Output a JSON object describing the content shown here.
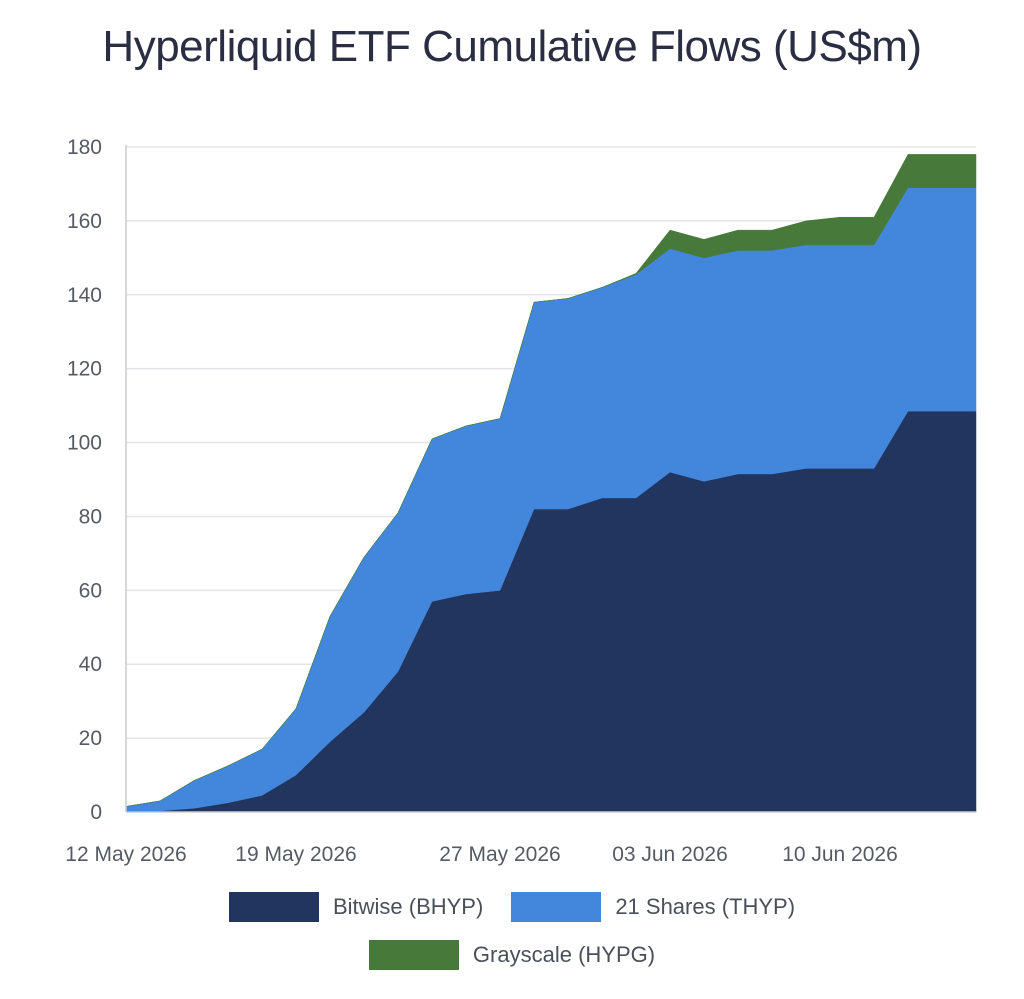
{
  "chart_data": {
    "type": "area",
    "stacked": true,
    "title": "Hyperliquid ETF Cumulative Flows (US$m)",
    "ylim": [
      0,
      180
    ],
    "yticks": [
      0,
      20,
      40,
      60,
      80,
      100,
      120,
      140,
      160,
      180
    ],
    "grid": true,
    "legend_position": "bottom",
    "x": [
      "12 May 2026",
      "13 May 2026",
      "14 May 2026",
      "15 May 2026",
      "18 May 2026",
      "19 May 2026",
      "20 May 2026",
      "21 May 2026",
      "22 May 2026",
      "25 May 2026",
      "26 May 2026",
      "27 May 2026",
      "28 May 2026",
      "29 May 2026",
      "01 Jun 2026",
      "02 Jun 2026",
      "03 Jun 2026",
      "04 Jun 2026",
      "05 Jun 2026",
      "08 Jun 2026",
      "09 Jun 2026",
      "10 Jun 2026",
      "11 Jun 2026",
      "12 Jun 2026",
      "15 Jun 2026",
      "16 Jun 2026"
    ],
    "xtick_labels": [
      "12 May 2026",
      "19 May 2026",
      "27 May 2026",
      "03 Jun 2026",
      "10 Jun 2026"
    ],
    "series": [
      {
        "name": "Bitwise (BHYP)",
        "color": "#22355e",
        "values": [
          0.3,
          0.3,
          1,
          2.5,
          4.5,
          10,
          19,
          27,
          38,
          57,
          59,
          60,
          82,
          82,
          85,
          85,
          92,
          89.5,
          91.5,
          91.5,
          93,
          93,
          93,
          108.5,
          108.5,
          108.5
        ]
      },
      {
        "name": "21 Shares (THYP)",
        "color": "#4287dc",
        "values": [
          1.2,
          2.7,
          7.5,
          10,
          12.5,
          18,
          34,
          42,
          43,
          44,
          45.5,
          46.5,
          56,
          57,
          57,
          60.5,
          60.5,
          60.5,
          60.5,
          60.5,
          60.5,
          60.5,
          60.5,
          60.5,
          60.5,
          60.5
        ]
      },
      {
        "name": "Grayscale (HYPG)",
        "color": "#477a3a",
        "values": [
          0,
          0,
          0,
          0,
          0,
          0,
          0,
          0,
          0,
          0,
          0,
          0,
          0,
          0,
          0,
          0.3,
          5,
          5,
          5.5,
          5.5,
          6.5,
          7.5,
          7.5,
          9,
          9,
          9
        ]
      }
    ]
  }
}
